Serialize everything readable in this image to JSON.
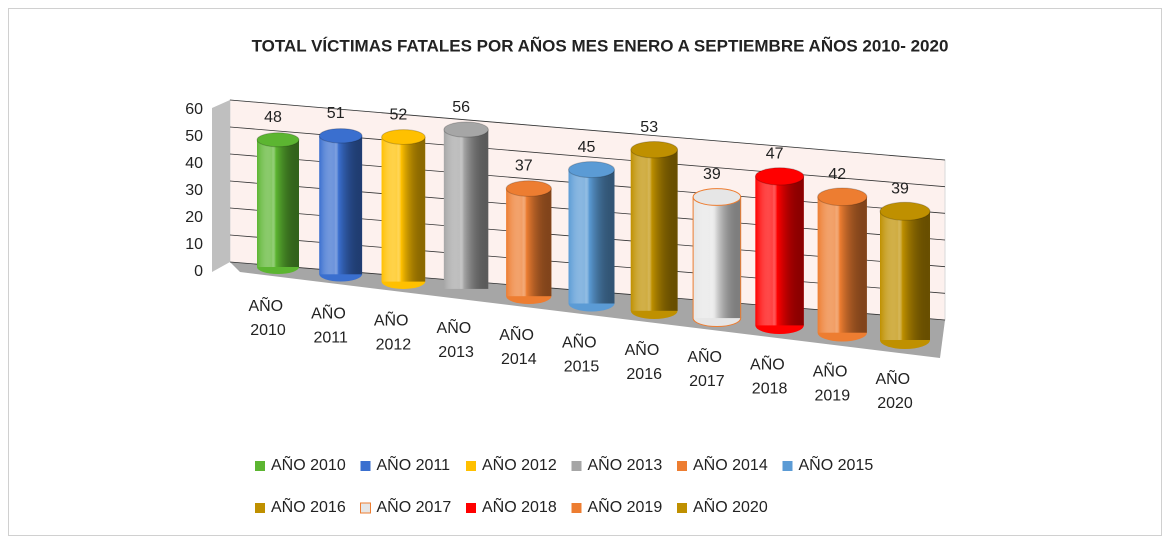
{
  "chart_data": {
    "type": "bar3d",
    "title": "TOTAL VÍCTIMAS FATALES  POR AÑOS MES ENERO A SEPTIEMBRE AÑOS 2010- 2020",
    "categories": [
      "AÑO 2010",
      "AÑO 2011",
      "AÑO 2012",
      "AÑO 2013",
      "AÑO 2014",
      "AÑO 2015",
      "AÑO 2016",
      "AÑO 2017",
      "AÑO 2018",
      "AÑO 2019",
      "AÑO 2020"
    ],
    "values": [
      48,
      51,
      52,
      56,
      37,
      45,
      53,
      39,
      47,
      42,
      39
    ],
    "colors": [
      "#5cb531",
      "#3a6fcf",
      "#ffc000",
      "#a6a6a6",
      "#ed7d31",
      "#5b9bd5",
      "#bf9000",
      "#e6e6e6",
      "#ff0000",
      "#ed7d31",
      "#bf9000"
    ],
    "ylim": [
      0,
      60
    ],
    "yticks": [
      0,
      10,
      20,
      30,
      40,
      50,
      60
    ],
    "grid": true,
    "data_labels": true
  }
}
